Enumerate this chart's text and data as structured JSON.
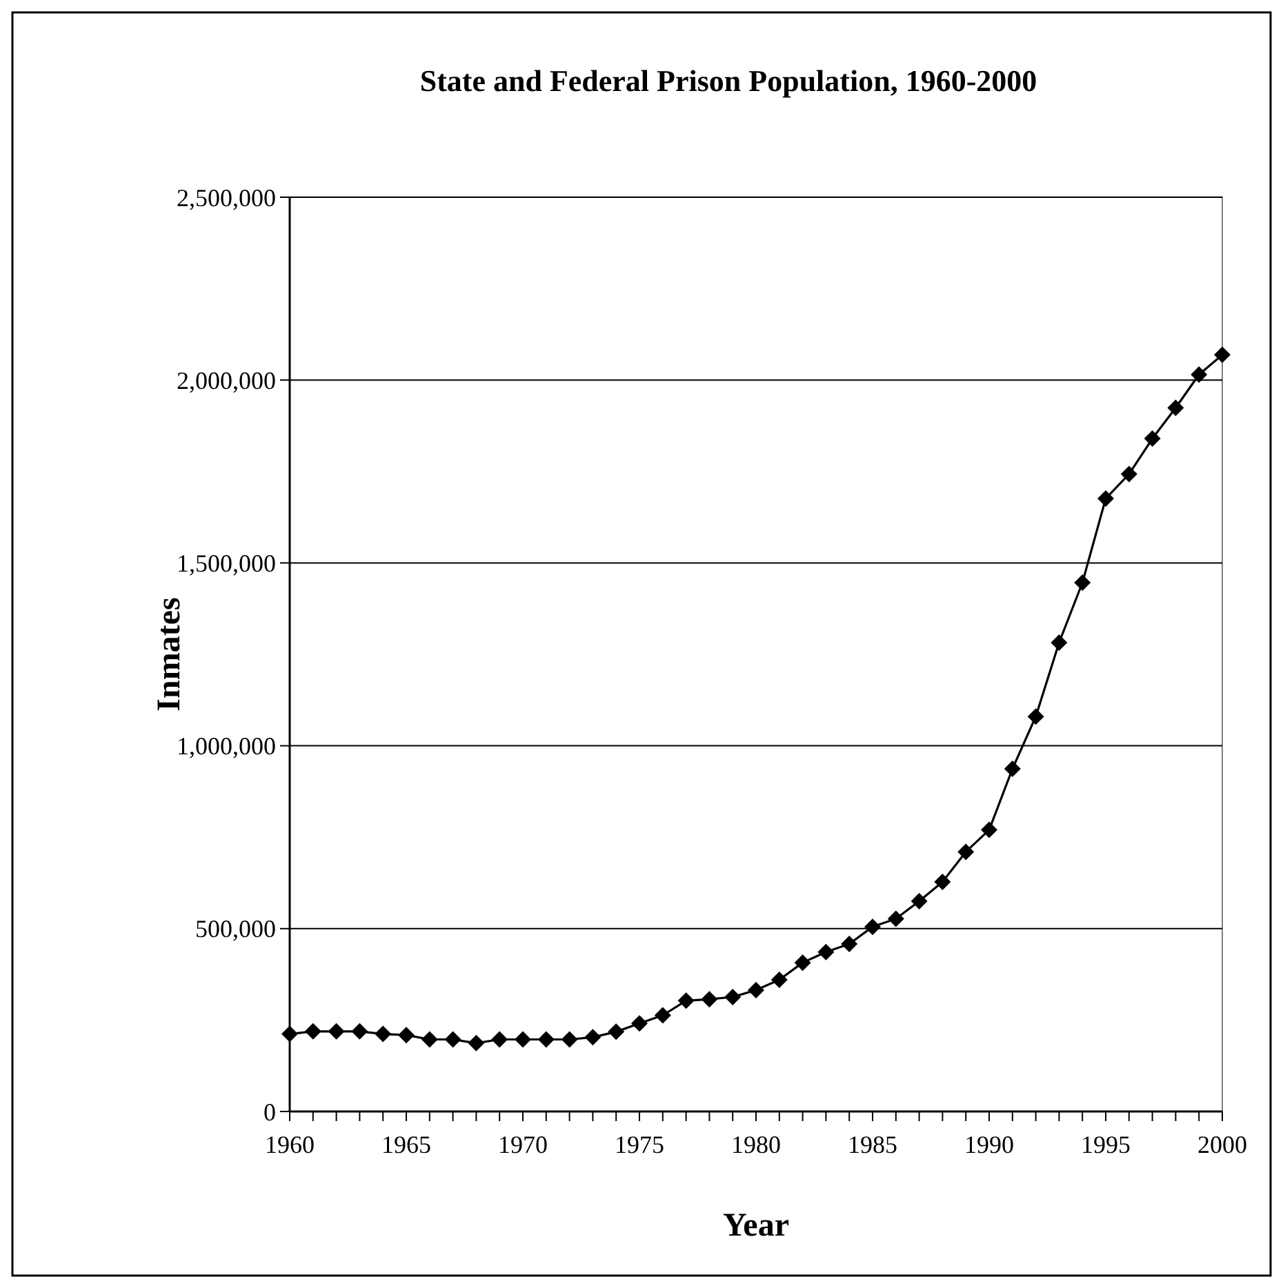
{
  "chart_data": {
    "type": "line",
    "title": "State and Federal Prison Population, 1960-2000",
    "xlabel": "Year",
    "ylabel": "Inmates",
    "x": [
      1960,
      1961,
      1962,
      1963,
      1964,
      1965,
      1966,
      1967,
      1968,
      1969,
      1970,
      1971,
      1972,
      1973,
      1974,
      1975,
      1976,
      1977,
      1978,
      1979,
      1980,
      1981,
      1982,
      1983,
      1984,
      1985,
      1986,
      1987,
      1988,
      1989,
      1990,
      1991,
      1992,
      1993,
      1994,
      1995,
      1996,
      1997,
      1998,
      1999,
      2000
    ],
    "series": [
      {
        "color": "#000000",
        "values": [
          212000,
          219000,
          219000,
          219000,
          212000,
          209000,
          197000,
          197000,
          187000,
          197000,
          197000,
          197000,
          197000,
          203000,
          218000,
          241000,
          263000,
          303000,
          307000,
          313000,
          332000,
          360000,
          407000,
          436000,
          458000,
          505000,
          527000,
          575000,
          628000,
          710000,
          770000,
          937000,
          1080000,
          1282000,
          1446000,
          1676000,
          1743000,
          1840000,
          1924000,
          2015000,
          2069000
        ]
      }
    ],
    "xlim": [
      1960,
      2000
    ],
    "xticks": [
      1960,
      {
        "value": 1961,
        "label": null
      },
      {
        "value": 1962,
        "label": null
      },
      {
        "value": 1963,
        "label": null
      },
      {
        "value": 1964,
        "label": null
      },
      1965,
      {
        "value": 1966,
        "label": null
      },
      {
        "value": 1967,
        "label": null
      },
      {
        "value": 1968,
        "label": null
      },
      {
        "value": 1969,
        "label": null
      },
      1970,
      {
        "value": 1971,
        "label": null
      },
      {
        "value": 1972,
        "label": null
      },
      {
        "value": 1973,
        "label": null
      },
      {
        "value": 1974,
        "label": null
      },
      1975,
      {
        "value": 1976,
        "label": null
      },
      {
        "value": 1977,
        "label": null
      },
      {
        "value": 1978,
        "label": null
      },
      {
        "value": 1979,
        "label": null
      },
      1980,
      {
        "value": 1981,
        "label": null
      },
      {
        "value": 1982,
        "label": null
      },
      {
        "value": 1983,
        "label": null
      },
      {
        "value": 1984,
        "label": null
      },
      1985,
      {
        "value": 1986,
        "label": null
      },
      {
        "value": 1987,
        "label": null
      },
      {
        "value": 1988,
        "label": null
      },
      {
        "value": 1989,
        "label": null
      },
      1990,
      {
        "value": 1991,
        "label": null
      },
      {
        "value": 1992,
        "label": null
      },
      {
        "value": 1993,
        "label": null
      },
      {
        "value": 1994,
        "label": null
      },
      1995,
      {
        "value": 1996,
        "label": null
      },
      {
        "value": 1997,
        "label": null
      },
      {
        "value": 1998,
        "label": null
      },
      {
        "value": 1999,
        "label": null
      },
      2000
    ],
    "ylim": [
      0,
      2500000
    ],
    "yticks": [
      {
        "value": 0,
        "label": "0"
      },
      {
        "value": 500000,
        "label": "500,000"
      },
      {
        "value": 1000000,
        "label": "1,000,000"
      },
      {
        "value": 1500000,
        "label": "1,500,000"
      },
      {
        "value": 2000000,
        "label": "2,000,000"
      },
      {
        "value": 2500000,
        "label": "2,500,000"
      }
    ],
    "grid": "y",
    "marker": "diamond",
    "line_style": "solid"
  }
}
